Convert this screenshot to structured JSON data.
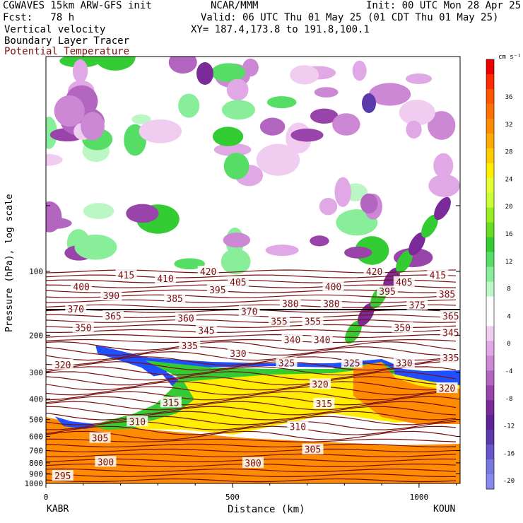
{
  "header": {
    "line1_left": "CGWAVES 15km ARW-GFS init",
    "line1_mid": "NCAR/MMM",
    "line1_right": "Init: 00 UTC Mon 28 Apr 25",
    "fcst": "Fcst:   78 h",
    "valid": "Valid: 06 UTC Thu 01 May 25 (01 CDT Thu 01 May 25)",
    "field1": "Vertical velocity",
    "field2": "Boundary Layer Tracer",
    "xy": "XY= 187.4,173.8 to 191.8,100.1",
    "field3": "Potential Temperature"
  },
  "colors": {
    "contour": "#7a0f0f",
    "tracer": "#1e50ff"
  },
  "chart_data": {
    "type": "heatmap",
    "ylabel": "Pressure (hPa), log scale",
    "xlabel": "Distance (km)",
    "x_start_label": "KABR",
    "x_end_label": "KOUN",
    "xlim": [
      0,
      1110
    ],
    "x_ticks": [
      0,
      500,
      1000
    ],
    "y_log": true,
    "y_ticks": [
      100,
      200,
      300,
      400,
      500,
      600,
      700,
      800,
      900,
      1000
    ],
    "colorbar": {
      "units": "cm s⁻¹",
      "ticks": [
        36,
        32,
        28,
        24,
        20,
        16,
        12,
        8,
        4,
        0,
        -4,
        -8,
        -12,
        -16,
        -20
      ],
      "colors": [
        "#ee0000",
        "#ff2a00",
        "#ff5500",
        "#ff7000",
        "#ff8c00",
        "#ffaa00",
        "#ffcc00",
        "#ffee00",
        "#e6ff33",
        "#ccff33",
        "#99ee22",
        "#66dd22",
        "#33cc33",
        "#55dd66",
        "#88ee99",
        "#bbf7c4",
        "#ffffff",
        "#ffffff",
        "#f0ccf0",
        "#e0a8e4",
        "#cc88d4",
        "#b266bf",
        "#9944aa",
        "#7a2a99",
        "#602299",
        "#5a3aaa",
        "#6655cc",
        "#7777e0",
        "#8888ee"
      ]
    },
    "theta_labels": [
      {
        "value": 415,
        "x": 215,
        "p": 104
      },
      {
        "value": 410,
        "x": 320,
        "p": 108
      },
      {
        "value": 420,
        "x": 435,
        "p": 100
      },
      {
        "value": 405,
        "x": 515,
        "p": 112
      },
      {
        "value": 420,
        "x": 880,
        "p": 100
      },
      {
        "value": 405,
        "x": 960,
        "p": 112
      },
      {
        "value": 415,
        "x": 1050,
        "p": 104
      },
      {
        "value": 400,
        "x": 95,
        "p": 118
      },
      {
        "value": 395,
        "x": 460,
        "p": 122
      },
      {
        "value": 400,
        "x": 770,
        "p": 118
      },
      {
        "value": 395,
        "x": 915,
        "p": 124
      },
      {
        "value": 385,
        "x": 1075,
        "p": 128
      },
      {
        "value": 390,
        "x": 175,
        "p": 130
      },
      {
        "value": 385,
        "x": 345,
        "p": 134
      },
      {
        "value": 380,
        "x": 655,
        "p": 142
      },
      {
        "value": 380,
        "x": 765,
        "p": 142
      },
      {
        "value": 375,
        "x": 995,
        "p": 144
      },
      {
        "value": 370,
        "x": 80,
        "p": 150
      },
      {
        "value": 370,
        "x": 545,
        "p": 154
      },
      {
        "value": 365,
        "x": 180,
        "p": 162
      },
      {
        "value": 360,
        "x": 375,
        "p": 166
      },
      {
        "value": 355,
        "x": 625,
        "p": 172
      },
      {
        "value": 355,
        "x": 715,
        "p": 172
      },
      {
        "value": 365,
        "x": 1085,
        "p": 162
      },
      {
        "value": 350,
        "x": 100,
        "p": 184
      },
      {
        "value": 345,
        "x": 430,
        "p": 190
      },
      {
        "value": 350,
        "x": 955,
        "p": 184
      },
      {
        "value": 345,
        "x": 1085,
        "p": 194
      },
      {
        "value": 340,
        "x": 660,
        "p": 210
      },
      {
        "value": 340,
        "x": 740,
        "p": 210
      },
      {
        "value": 335,
        "x": 385,
        "p": 224
      },
      {
        "value": 335,
        "x": 1085,
        "p": 255
      },
      {
        "value": 330,
        "x": 515,
        "p": 244
      },
      {
        "value": 330,
        "x": 960,
        "p": 270
      },
      {
        "value": 325,
        "x": 645,
        "p": 270
      },
      {
        "value": 325,
        "x": 820,
        "p": 270
      },
      {
        "value": 320,
        "x": 45,
        "p": 275
      },
      {
        "value": 320,
        "x": 735,
        "p": 340
      },
      {
        "value": 320,
        "x": 1075,
        "p": 355
      },
      {
        "value": 315,
        "x": 335,
        "p": 415
      },
      {
        "value": 315,
        "x": 745,
        "p": 420
      },
      {
        "value": 310,
        "x": 245,
        "p": 510
      },
      {
        "value": 310,
        "x": 675,
        "p": 540
      },
      {
        "value": 305,
        "x": 145,
        "p": 610
      },
      {
        "value": 305,
        "x": 715,
        "p": 690
      },
      {
        "value": 300,
        "x": 160,
        "p": 790
      },
      {
        "value": 300,
        "x": 555,
        "p": 800
      },
      {
        "value": 295,
        "x": 45,
        "p": 920
      }
    ]
  }
}
